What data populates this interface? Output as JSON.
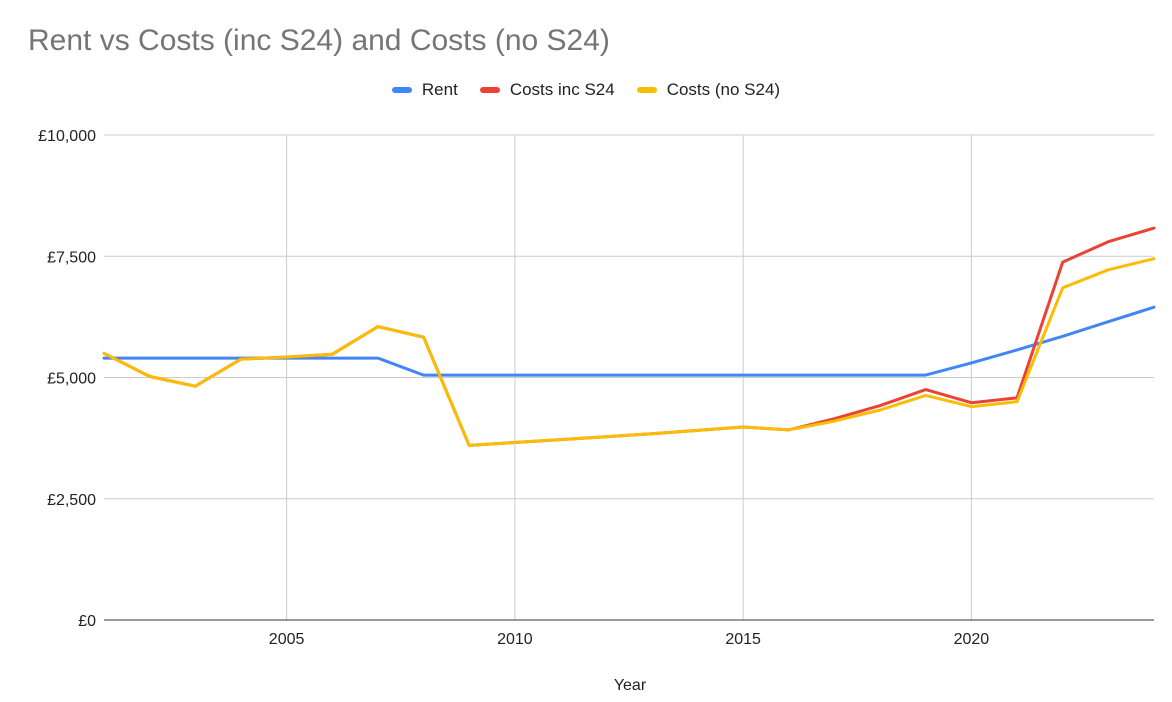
{
  "chart_data": {
    "type": "line",
    "title": "Rent vs Costs (inc S24) and Costs (no S24)",
    "xlabel": "Year",
    "ylabel": "",
    "xlim": [
      2001,
      2024
    ],
    "ylim": [
      0,
      10000
    ],
    "xticks": [
      2005,
      2010,
      2015,
      2020
    ],
    "xtick_labels": [
      "2005",
      "2010",
      "2015",
      "2020"
    ],
    "yticks": [
      0,
      2500,
      5000,
      7500,
      10000
    ],
    "ytick_labels": [
      "£0",
      "£2,500",
      "£5,000",
      "£7,500",
      "£10,000"
    ],
    "grid": true,
    "legend_position": "top",
    "x": [
      2001,
      2002,
      2003,
      2004,
      2005,
      2006,
      2007,
      2008,
      2009,
      2010,
      2011,
      2012,
      2013,
      2014,
      2015,
      2016,
      2017,
      2018,
      2019,
      2020,
      2021,
      2022,
      2023,
      2024
    ],
    "series": [
      {
        "name": "Rent",
        "color": "#4285f4",
        "values": [
          5400,
          5400,
          5400,
          5400,
          5400,
          5400,
          5400,
          5050,
          5050,
          5050,
          5050,
          5050,
          5050,
          5050,
          5050,
          5050,
          5050,
          5050,
          5050,
          5300,
          5570,
          5850,
          6150,
          6450
        ]
      },
      {
        "name": "Costs inc S24",
        "color": "#ea4335",
        "values": [
          5500,
          5020,
          4820,
          5380,
          5420,
          5480,
          6050,
          5830,
          3600,
          3660,
          3720,
          3780,
          3840,
          3910,
          3980,
          3920,
          4150,
          4420,
          4750,
          4480,
          4580,
          7380,
          7800,
          8080
        ]
      },
      {
        "name": "Costs (no S24)",
        "color": "#fbbc04",
        "values": [
          5500,
          5020,
          4820,
          5380,
          5420,
          5480,
          6050,
          5830,
          3600,
          3660,
          3720,
          3780,
          3840,
          3910,
          3980,
          3920,
          4100,
          4330,
          4630,
          4400,
          4500,
          6850,
          7220,
          7450
        ]
      }
    ]
  }
}
